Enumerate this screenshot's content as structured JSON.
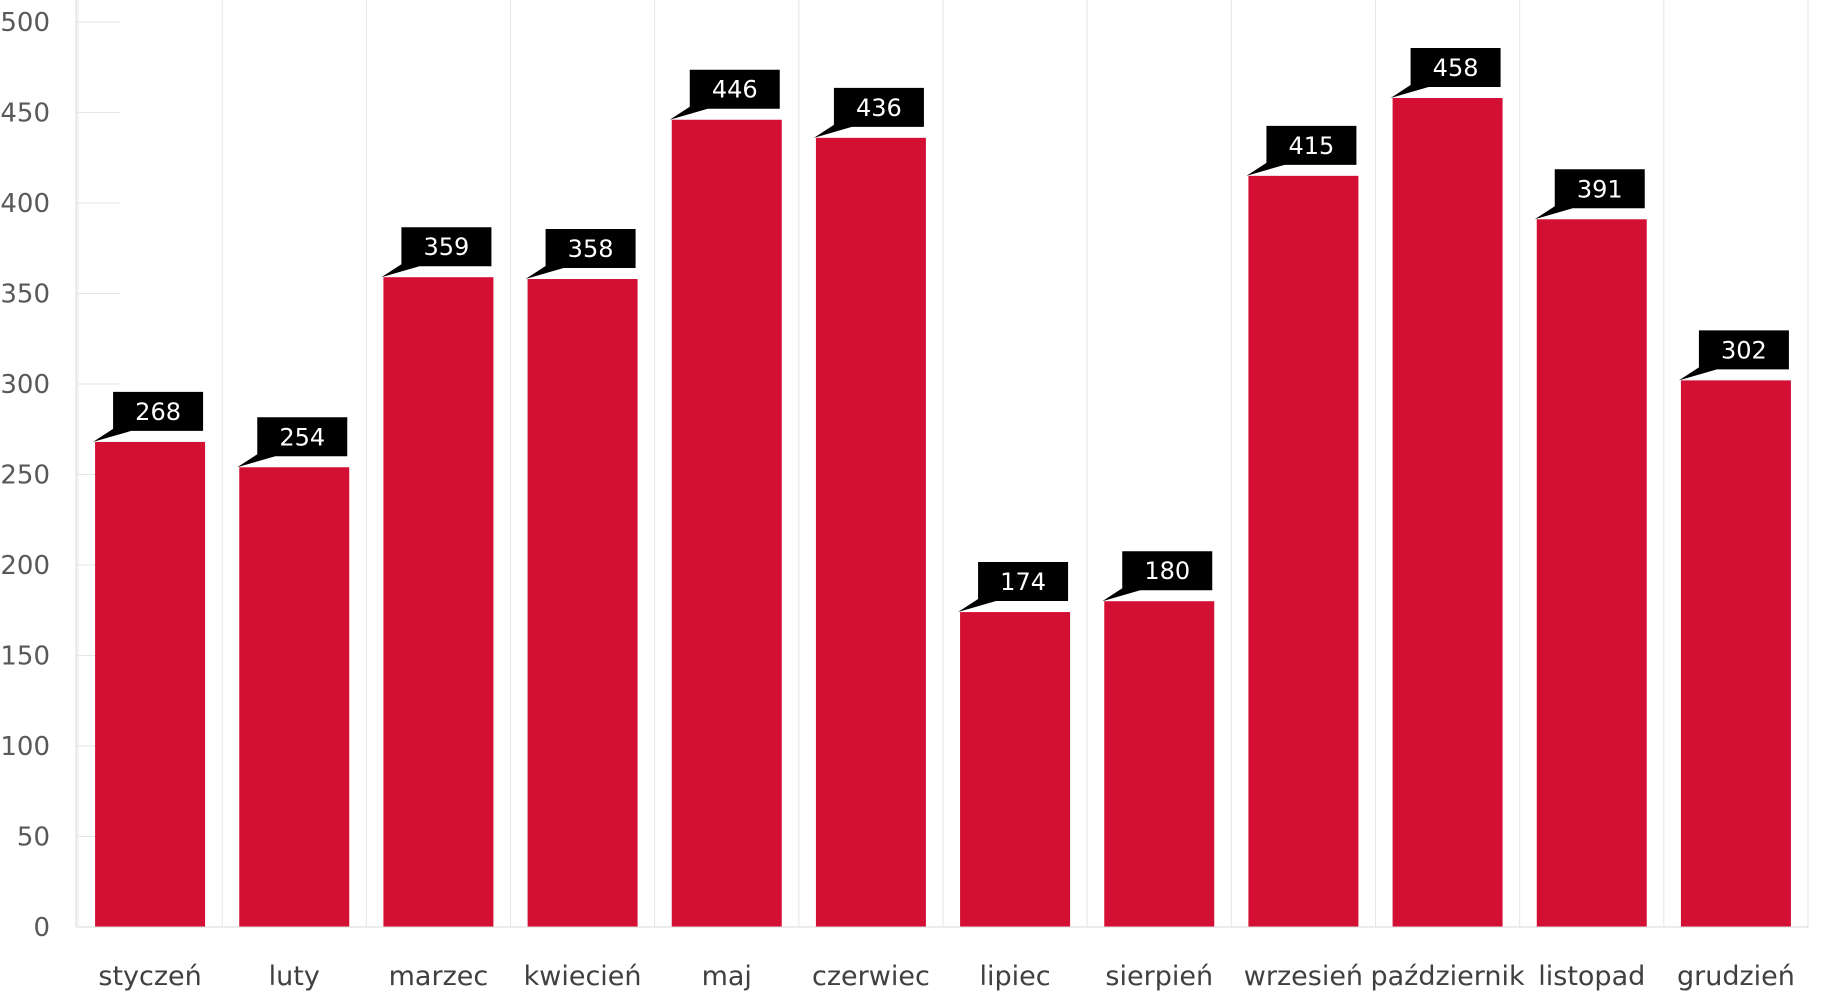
{
  "chart_data": {
    "type": "bar",
    "categories": [
      "styczeń",
      "luty",
      "marzec",
      "kwiecień",
      "maj",
      "czerwiec",
      "lipiec",
      "sierpień",
      "wrzesień",
      "październik",
      "listopad",
      "grudzień"
    ],
    "values": [
      268,
      254,
      359,
      358,
      446,
      436,
      174,
      180,
      415,
      458,
      391,
      302
    ],
    "ylim": [
      0,
      500
    ],
    "yticks": [
      0,
      50,
      100,
      150,
      200,
      250,
      300,
      350,
      400,
      450,
      500
    ],
    "title": "",
    "xlabel": "",
    "ylabel": "",
    "grid": "vertical separators between categories",
    "legend": "none",
    "data_labels": "callout above each bar",
    "colors": {
      "bar": "#d31033",
      "label_background": "#000000",
      "label_text": "#ffffff",
      "axis_text": "#595959",
      "grid": "#e6e6e6"
    }
  }
}
